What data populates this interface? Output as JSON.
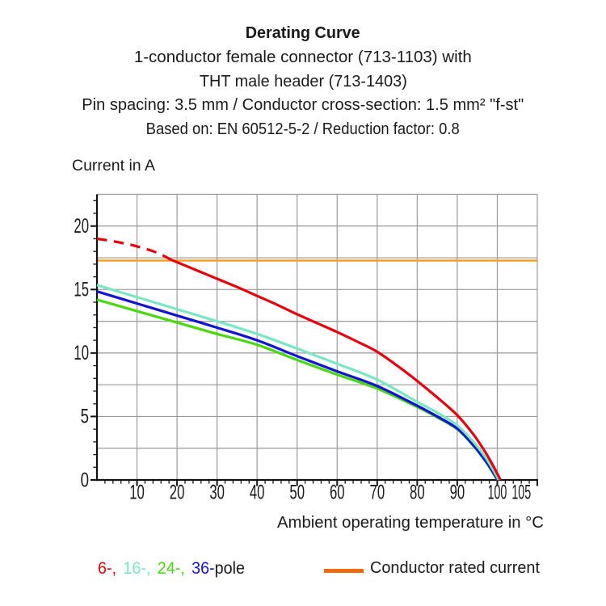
{
  "header": {
    "title": "Derating Curve",
    "subtitle_lines": [
      "1-conductor female connector (713-1103) with",
      "THT male header (713-1403)",
      "Pin spacing: 3.5 mm / Conductor cross-section: 1.5 mm² \"f-st\"",
      "Based on: EN 60512-5-2 / Reduction factor: 0.8"
    ]
  },
  "chart_data": {
    "type": "line",
    "title": "Derating Curve",
    "xlabel": "Ambient operating temperature in °C",
    "ylabel": "Current in A",
    "xlim": [
      0,
      110
    ],
    "ylim": [
      0,
      22.5
    ],
    "grid": true,
    "x_ticks": {
      "labels": [
        "10",
        "20",
        "30",
        "40",
        "50",
        "60",
        "70",
        "80",
        "90",
        "100",
        "105"
      ],
      "values": [
        10,
        20,
        30,
        40,
        50,
        60,
        70,
        80,
        90,
        100,
        105
      ],
      "minor_step": 2,
      "grid_step": 10
    },
    "y_ticks": {
      "labels": [
        "0",
        "5",
        "10",
        "15",
        "20"
      ],
      "values": [
        0,
        5,
        10,
        15,
        20
      ],
      "minor_step": 1,
      "grid_step": 2.5
    },
    "rated_current_line": {
      "y": 17.28,
      "color": "#f5a11f",
      "label": "Conductor rated current"
    },
    "series": [
      {
        "name": "6-pole",
        "color": "#e8000d",
        "style": "dashed",
        "points": [
          [
            0,
            19.0
          ],
          [
            5,
            18.75
          ],
          [
            10,
            18.4
          ],
          [
            15,
            17.9
          ],
          [
            18.5,
            17.35
          ]
        ]
      },
      {
        "name": "6-pole",
        "color": "#e8000d",
        "style": "solid",
        "points": [
          [
            18.5,
            17.35
          ],
          [
            25,
            16.5
          ],
          [
            30,
            15.85
          ],
          [
            35,
            15.2
          ],
          [
            40,
            14.5
          ],
          [
            45,
            13.8
          ],
          [
            50,
            13.05
          ],
          [
            55,
            12.35
          ],
          [
            60,
            11.65
          ],
          [
            65,
            10.9
          ],
          [
            70,
            10.1
          ],
          [
            75,
            9.0
          ],
          [
            80,
            7.8
          ],
          [
            85,
            6.5
          ],
          [
            90,
            5.1
          ],
          [
            94,
            3.6
          ],
          [
            97,
            2.2
          ],
          [
            99,
            1.1
          ],
          [
            100.8,
            0
          ]
        ]
      },
      {
        "name": "16-pole",
        "color": "#79e6c4",
        "style": "solid",
        "points": [
          [
            0,
            15.35
          ],
          [
            10,
            14.4
          ],
          [
            20,
            13.45
          ],
          [
            30,
            12.5
          ],
          [
            40,
            11.5
          ],
          [
            50,
            10.35
          ],
          [
            60,
            9.15
          ],
          [
            70,
            7.9
          ],
          [
            80,
            6.15
          ],
          [
            85,
            5.3
          ],
          [
            90,
            4.3
          ],
          [
            94,
            3.0
          ],
          [
            97,
            1.8
          ],
          [
            99,
            0.78
          ],
          [
            100.35,
            0
          ]
        ]
      },
      {
        "name": "24-pole",
        "color": "#49d70d",
        "style": "solid",
        "points": [
          [
            0,
            14.2
          ],
          [
            10,
            13.3
          ],
          [
            20,
            12.4
          ],
          [
            30,
            11.5
          ],
          [
            40,
            10.65
          ],
          [
            50,
            9.45
          ],
          [
            60,
            8.3
          ],
          [
            70,
            7.2
          ],
          [
            80,
            5.75
          ],
          [
            85,
            4.93
          ],
          [
            90,
            4.0
          ],
          [
            94,
            2.7
          ],
          [
            97,
            1.5
          ],
          [
            99,
            0.52
          ],
          [
            100.05,
            0
          ]
        ]
      },
      {
        "name": "36-pole",
        "color": "#1313d2",
        "style": "solid",
        "points": [
          [
            0,
            14.85
          ],
          [
            10,
            13.9
          ],
          [
            20,
            12.95
          ],
          [
            30,
            12.0
          ],
          [
            40,
            11.0
          ],
          [
            50,
            9.75
          ],
          [
            60,
            8.55
          ],
          [
            70,
            7.4
          ],
          [
            80,
            5.85
          ],
          [
            85,
            5.0
          ],
          [
            90,
            4.05
          ],
          [
            94,
            2.75
          ],
          [
            97,
            1.55
          ],
          [
            99,
            0.58
          ],
          [
            100.1,
            0
          ]
        ]
      }
    ]
  },
  "legend": {
    "pole_items": [
      {
        "text": "6-,",
        "color": "#e8000d"
      },
      {
        "text": "16-,",
        "color": "#79e6c4"
      },
      {
        "text": "24-,",
        "color": "#49d70d"
      },
      {
        "text": "36-",
        "color": "#1313d2"
      }
    ],
    "pole_suffix": "pole",
    "rated": {
      "label": "Conductor rated current",
      "swatch_color": "#f2690d"
    }
  }
}
